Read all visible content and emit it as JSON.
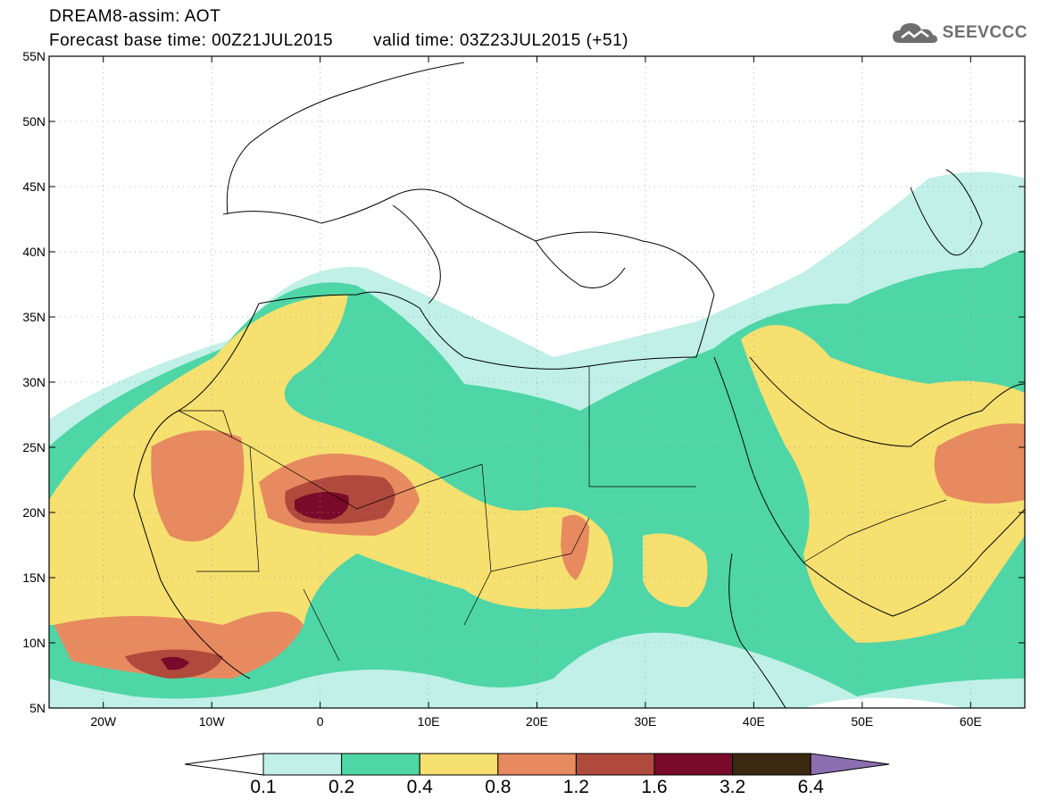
{
  "header": {
    "title": "DREAM8-assim: AOT",
    "base_time": "Forecast base time: 00Z21JUL2015",
    "valid_time": "valid time: 03Z23JUL2015 (+51)"
  },
  "logo": {
    "text": "SEEVCCC",
    "icon": "cloud-logo-icon",
    "color": "#6e6e6e"
  },
  "map": {
    "lon_range": [
      -25,
      65
    ],
    "lat_range": [
      5,
      55
    ],
    "lat_labels": [
      "5N",
      "10N",
      "15N",
      "20N",
      "25N",
      "30N",
      "35N",
      "40N",
      "45N",
      "50N",
      "55N"
    ],
    "lon_labels": [
      "20W",
      "10W",
      "0",
      "10E",
      "20E",
      "30E",
      "40E",
      "50E",
      "60E"
    ]
  },
  "legend": {
    "values": [
      "0.1",
      "0.2",
      "0.4",
      "0.8",
      "1.2",
      "1.6",
      "3.2",
      "6.4"
    ],
    "colors": [
      "#ffffff",
      "#c0f0e8",
      "#4fd6a6",
      "#f5e070",
      "#e88a60",
      "#b04a3c",
      "#7a0a2a",
      "#3a2810",
      "#8c6fb0"
    ]
  }
}
